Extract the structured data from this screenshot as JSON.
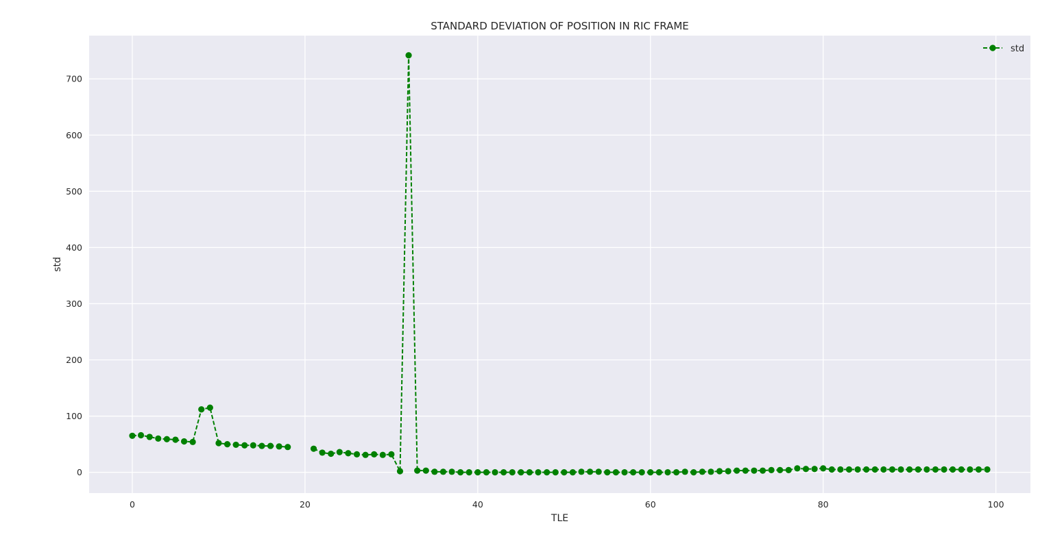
{
  "chart_data": {
    "type": "line",
    "title": "STANDARD DEVIATION OF POSITION IN RIC FRAME",
    "xlabel": "TLE",
    "ylabel": "std",
    "xlim": [
      -5,
      104
    ],
    "ylim": [
      -37,
      777
    ],
    "xticks": [
      0,
      20,
      40,
      60,
      80,
      100
    ],
    "yticks": [
      0,
      100,
      200,
      300,
      400,
      500,
      600,
      700
    ],
    "grid": true,
    "legend_position": "top-right",
    "line_style": "dashed",
    "marker": "circle",
    "series": [
      {
        "name": "std",
        "color": "#008000",
        "x": [
          0,
          1,
          2,
          3,
          4,
          5,
          6,
          7,
          8,
          9,
          10,
          11,
          12,
          13,
          14,
          15,
          16,
          17,
          18,
          19,
          20,
          21,
          22,
          23,
          24,
          25,
          26,
          27,
          28,
          29,
          30,
          31,
          32,
          33,
          34,
          35,
          36,
          37,
          38,
          39,
          40,
          41,
          42,
          43,
          44,
          45,
          46,
          47,
          48,
          49,
          50,
          51,
          52,
          53,
          54,
          55,
          56,
          57,
          58,
          59,
          60,
          61,
          62,
          63,
          64,
          65,
          66,
          67,
          68,
          69,
          70,
          71,
          72,
          73,
          74,
          75,
          76,
          77,
          78,
          79,
          80,
          81,
          82,
          83,
          84,
          85,
          86,
          87,
          88,
          89,
          90,
          91,
          92,
          93,
          94,
          95,
          96,
          97,
          98,
          99
        ],
        "y": [
          65,
          66,
          63,
          60,
          59,
          58,
          55,
          54,
          112,
          115,
          52,
          50,
          49,
          48,
          48,
          47,
          47,
          46,
          45,
          null,
          null,
          42,
          35,
          33,
          36,
          34,
          32,
          31,
          32,
          31,
          32,
          2,
          742,
          3,
          3,
          1,
          1,
          1,
          0,
          0,
          0,
          0,
          0,
          0,
          0,
          0,
          0,
          0,
          0,
          0,
          0,
          0,
          1,
          1,
          1,
          0,
          0,
          0,
          0,
          0,
          0,
          0,
          0,
          0,
          1,
          0,
          1,
          1,
          2,
          2,
          3,
          3,
          3,
          3,
          4,
          4,
          4,
          7,
          6,
          6,
          7,
          5,
          5,
          5,
          5,
          5,
          5,
          5,
          5,
          5,
          5,
          5,
          5,
          5,
          5,
          5,
          5,
          5,
          5,
          5
        ]
      }
    ]
  }
}
